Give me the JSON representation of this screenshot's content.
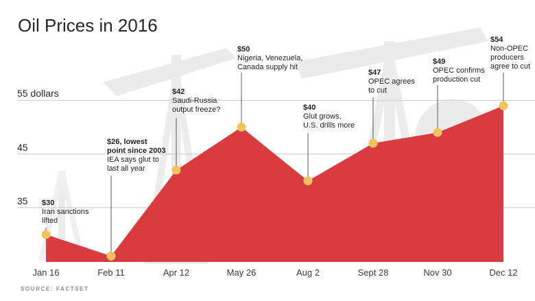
{
  "title": "Oil Prices in 2016",
  "source": "SOURCE: FACTSET",
  "colors": {
    "area": "#d93c3f",
    "marker": "#f2c25f",
    "grid": "#c8c8c8",
    "background_silhouette": "#e6e6e6"
  },
  "chart_data": {
    "type": "area",
    "title": "Oil Prices in 2016",
    "xlabel": "",
    "ylabel": "",
    "x": [
      "Jan 16",
      "Feb 11",
      "Apr 12",
      "May 26",
      "Aug 2",
      "Sept 28",
      "Nov 30",
      "Dec 12"
    ],
    "values": [
      30,
      26,
      42,
      50,
      40,
      47,
      49,
      54
    ],
    "y_ticks": [
      {
        "value": 35,
        "label": "35"
      },
      {
        "value": 45,
        "label": "45"
      },
      {
        "value": 55,
        "label": "55 dollars"
      }
    ],
    "ylim": [
      24.9,
      55.8
    ],
    "grid": true,
    "annotations": [
      {
        "price": "$30",
        "lines": [
          "Iran sanctions",
          "lifted"
        ]
      },
      {
        "price": "$26, lowest",
        "bold_lines": [
          "point since 2003"
        ],
        "lines": [
          "IEA says glut to",
          "last all year"
        ]
      },
      {
        "price": "$42",
        "lines": [
          "Saudi-Russia",
          "output freeze?"
        ]
      },
      {
        "price": "$50",
        "lines": [
          "Nigeria, Venezuela,",
          "Canada supply hit"
        ]
      },
      {
        "price": "$40",
        "lines": [
          "Glut grows,",
          "U.S. drills more"
        ]
      },
      {
        "price": "$47",
        "lines": [
          "OPEC agrees",
          "to cut"
        ]
      },
      {
        "price": "$49",
        "lines": [
          "OPEC confirms",
          "production cut"
        ]
      },
      {
        "price": "$54",
        "lines": [
          "Non-OPEC",
          "producers",
          "agree to cut"
        ]
      }
    ]
  }
}
